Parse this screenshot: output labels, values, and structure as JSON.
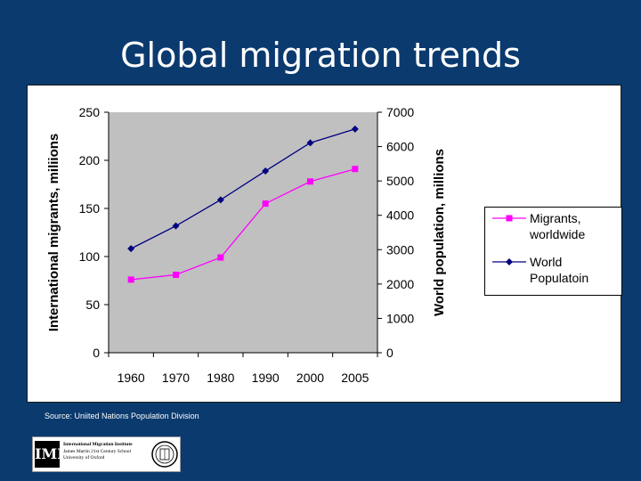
{
  "slide": {
    "title": "Global migration trends",
    "source": "Source: Uniited Nations Population Division"
  },
  "logo": {
    "mark": "IMI",
    "line1": "International Migration Institute",
    "line2": "James Martin 21st Century School",
    "line3": "University of Oxford"
  },
  "colors": {
    "background": "#0b3a6e",
    "plot_area": "#c0c0c0",
    "migrants": "#ff00ff",
    "population": "#000080"
  },
  "chart_data": {
    "type": "line",
    "title": "",
    "categories": [
      "1960",
      "1970",
      "1980",
      "1990",
      "2000",
      "2005"
    ],
    "y_left": {
      "label": "International migrants, miliions",
      "range": [
        0,
        250
      ],
      "ticks": [
        0,
        50,
        100,
        150,
        200,
        250
      ]
    },
    "y_right": {
      "label": "World population, millions",
      "range": [
        0,
        7000
      ],
      "ticks": [
        0,
        1000,
        2000,
        3000,
        4000,
        5000,
        6000,
        7000
      ]
    },
    "grid": false,
    "legend_placement": "right",
    "series": [
      {
        "name": "Migrants, worldwide",
        "axis": "left",
        "marker": "square",
        "color": "#ff00ff",
        "values": [
          76,
          81,
          99,
          155,
          178,
          191
        ]
      },
      {
        "name": "World Populatoin",
        "axis": "right",
        "marker": "diamond",
        "color": "#000080",
        "values": [
          3030,
          3690,
          4450,
          5290,
          6110,
          6510
        ]
      }
    ]
  }
}
